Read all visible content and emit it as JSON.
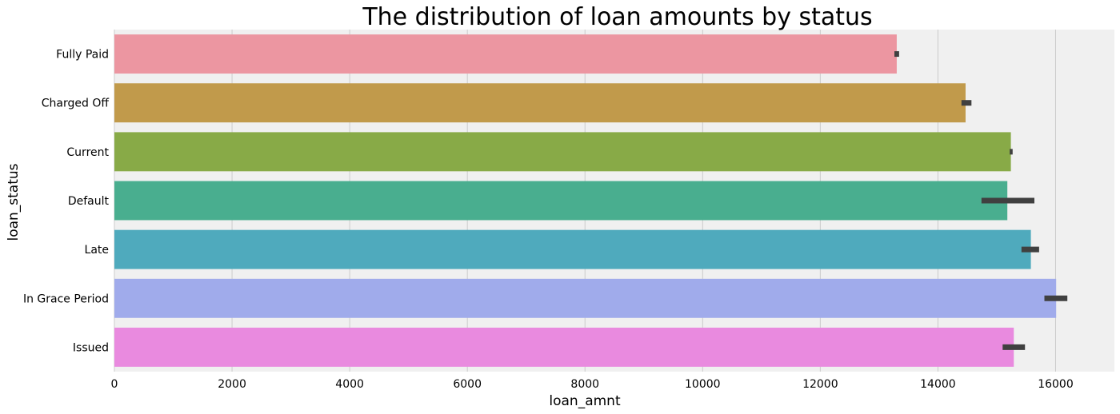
{
  "chart_data": {
    "type": "bar",
    "orientation": "horizontal",
    "title": "The distribution of loan amounts by status",
    "xlabel": "loan_amnt",
    "ylabel": "loan_status",
    "xlim": [
      0,
      17000
    ],
    "xticks": [
      0,
      2000,
      4000,
      6000,
      8000,
      10000,
      12000,
      14000,
      16000
    ],
    "grid": true,
    "background": "#f0f0f0",
    "errorbar_color": "#404040",
    "categories": [
      "Fully Paid",
      "Charged Off",
      "Current",
      "Default",
      "Late",
      "In Grace Period",
      "Issued"
    ],
    "values": [
      13300,
      14470,
      15240,
      15180,
      15580,
      16010,
      15290
    ],
    "error_low": [
      13260,
      14400,
      15220,
      14740,
      15420,
      15810,
      15100
    ],
    "error_high": [
      13340,
      14570,
      15270,
      15640,
      15720,
      16200,
      15480
    ],
    "colors": [
      "#ec96a1",
      "#c19a4b",
      "#88aa47",
      "#49ae8f",
      "#4faabd",
      "#a0abeb",
      "#e98adf"
    ]
  }
}
